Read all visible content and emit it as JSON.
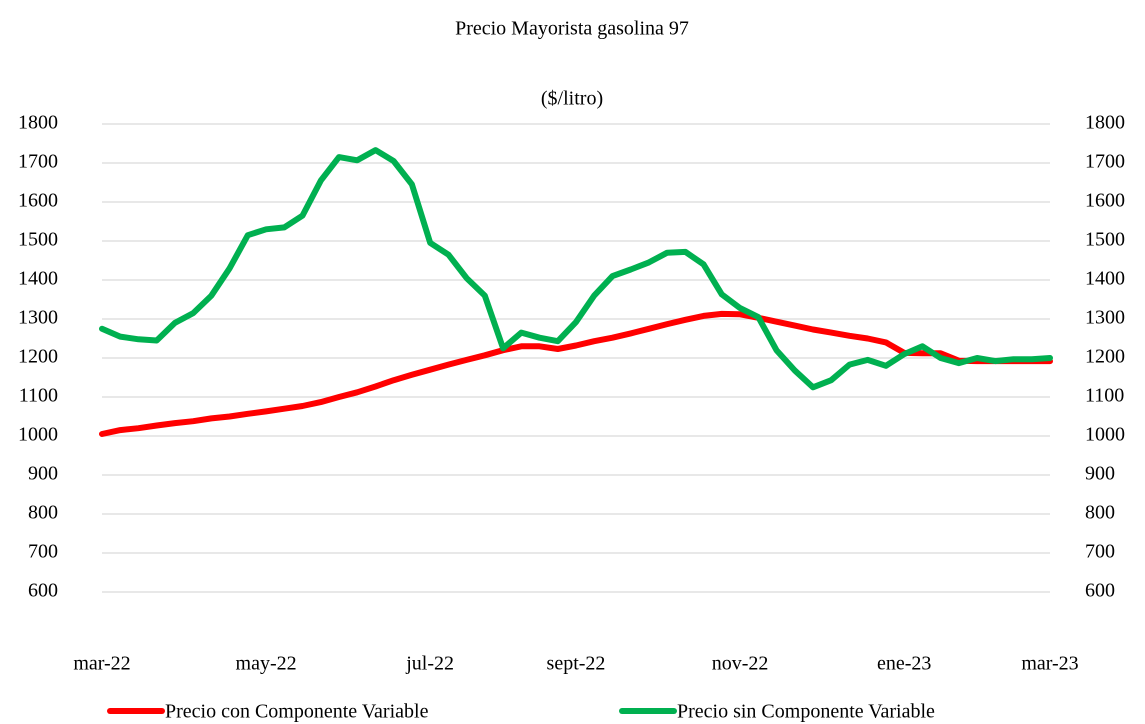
{
  "chart_data": {
    "type": "line",
    "title": "Precio Mayorista gasolina 97",
    "subtitle": "($/litro)",
    "categories": [
      "mar-22",
      null,
      null,
      null,
      null,
      null,
      null,
      null,
      null,
      "may-22",
      null,
      null,
      null,
      null,
      null,
      null,
      null,
      null,
      "jul-22",
      null,
      null,
      null,
      null,
      null,
      null,
      null,
      "sept-22",
      null,
      null,
      null,
      null,
      null,
      null,
      null,
      null,
      "nov-22",
      null,
      null,
      null,
      null,
      null,
      null,
      null,
      null,
      "ene-23",
      null,
      null,
      null,
      null,
      null,
      null,
      null,
      "mar-23"
    ],
    "series": [
      {
        "name": "Precio con Componente Variable",
        "color": "#ff0000",
        "values": [
          1005,
          1015,
          1020,
          1027,
          1033,
          1038,
          1045,
          1050,
          1057,
          1063,
          1070,
          1077,
          1087,
          1100,
          1112,
          1127,
          1143,
          1157,
          1170,
          1183,
          1195,
          1207,
          1220,
          1230,
          1230,
          1223,
          1232,
          1243,
          1252,
          1263,
          1275,
          1287,
          1298,
          1308,
          1313,
          1312,
          1303,
          1293,
          1283,
          1273,
          1265,
          1257,
          1250,
          1240,
          1213,
          1212,
          1212,
          1193,
          1192,
          1192,
          1192,
          1192,
          1192
        ]
      },
      {
        "name": "Precio sin Componente Variable",
        "color": "#00b050",
        "values": [
          1275,
          1255,
          1248,
          1245,
          1290,
          1315,
          1360,
          1430,
          1515,
          1530,
          1535,
          1565,
          1655,
          1715,
          1707,
          1733,
          1705,
          1645,
          1495,
          1465,
          1405,
          1360,
          1225,
          1265,
          1252,
          1243,
          1292,
          1360,
          1410,
          1427,
          1445,
          1470,
          1472,
          1440,
          1363,
          1328,
          1305,
          1220,
          1168,
          1125,
          1143,
          1183,
          1195,
          1180,
          1210,
          1230,
          1200,
          1187,
          1200,
          1192,
          1197,
          1197,
          1200
        ]
      }
    ],
    "ylim": [
      600,
      1800
    ],
    "yticks": [
      600,
      700,
      800,
      900,
      1000,
      1100,
      1200,
      1300,
      1400,
      1500,
      1600,
      1700,
      1800
    ],
    "y2lim": [
      600,
      1800
    ],
    "y2ticks": [
      600,
      700,
      800,
      900,
      1000,
      1100,
      1200,
      1300,
      1400,
      1500,
      1600,
      1700,
      1800
    ],
    "grid": true,
    "legend": "bottom"
  }
}
